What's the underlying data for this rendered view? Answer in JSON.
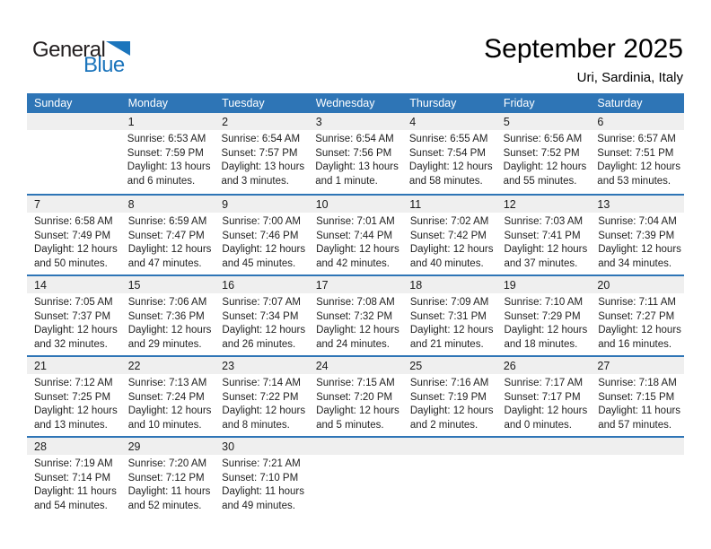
{
  "logo": {
    "general": "General",
    "blue": "Blue"
  },
  "header": {
    "title": "September 2025",
    "subtitle": "Uri, Sardinia, Italy"
  },
  "colors": {
    "header_bg": "#2E75B6",
    "header_text": "#FFFFFF",
    "separator": "#2E75B6",
    "day_band_bg": "#EFEFEF",
    "logo_blue": "#1C75BC",
    "logo_dark": "#231F20",
    "body_text": "#1F1F1F"
  },
  "weekdays": [
    "Sunday",
    "Monday",
    "Tuesday",
    "Wednesday",
    "Thursday",
    "Friday",
    "Saturday"
  ],
  "weeks": [
    [
      null,
      {
        "day": "1",
        "lines": [
          "Sunrise: 6:53 AM",
          "Sunset: 7:59 PM",
          "Daylight: 13 hours",
          "and 6 minutes."
        ]
      },
      {
        "day": "2",
        "lines": [
          "Sunrise: 6:54 AM",
          "Sunset: 7:57 PM",
          "Daylight: 13 hours",
          "and 3 minutes."
        ]
      },
      {
        "day": "3",
        "lines": [
          "Sunrise: 6:54 AM",
          "Sunset: 7:56 PM",
          "Daylight: 13 hours",
          "and 1 minute."
        ]
      },
      {
        "day": "4",
        "lines": [
          "Sunrise: 6:55 AM",
          "Sunset: 7:54 PM",
          "Daylight: 12 hours",
          "and 58 minutes."
        ]
      },
      {
        "day": "5",
        "lines": [
          "Sunrise: 6:56 AM",
          "Sunset: 7:52 PM",
          "Daylight: 12 hours",
          "and 55 minutes."
        ]
      },
      {
        "day": "6",
        "lines": [
          "Sunrise: 6:57 AM",
          "Sunset: 7:51 PM",
          "Daylight: 12 hours",
          "and 53 minutes."
        ]
      }
    ],
    [
      {
        "day": "7",
        "lines": [
          "Sunrise: 6:58 AM",
          "Sunset: 7:49 PM",
          "Daylight: 12 hours",
          "and 50 minutes."
        ]
      },
      {
        "day": "8",
        "lines": [
          "Sunrise: 6:59 AM",
          "Sunset: 7:47 PM",
          "Daylight: 12 hours",
          "and 47 minutes."
        ]
      },
      {
        "day": "9",
        "lines": [
          "Sunrise: 7:00 AM",
          "Sunset: 7:46 PM",
          "Daylight: 12 hours",
          "and 45 minutes."
        ]
      },
      {
        "day": "10",
        "lines": [
          "Sunrise: 7:01 AM",
          "Sunset: 7:44 PM",
          "Daylight: 12 hours",
          "and 42 minutes."
        ]
      },
      {
        "day": "11",
        "lines": [
          "Sunrise: 7:02 AM",
          "Sunset: 7:42 PM",
          "Daylight: 12 hours",
          "and 40 minutes."
        ]
      },
      {
        "day": "12",
        "lines": [
          "Sunrise: 7:03 AM",
          "Sunset: 7:41 PM",
          "Daylight: 12 hours",
          "and 37 minutes."
        ]
      },
      {
        "day": "13",
        "lines": [
          "Sunrise: 7:04 AM",
          "Sunset: 7:39 PM",
          "Daylight: 12 hours",
          "and 34 minutes."
        ]
      }
    ],
    [
      {
        "day": "14",
        "lines": [
          "Sunrise: 7:05 AM",
          "Sunset: 7:37 PM",
          "Daylight: 12 hours",
          "and 32 minutes."
        ]
      },
      {
        "day": "15",
        "lines": [
          "Sunrise: 7:06 AM",
          "Sunset: 7:36 PM",
          "Daylight: 12 hours",
          "and 29 minutes."
        ]
      },
      {
        "day": "16",
        "lines": [
          "Sunrise: 7:07 AM",
          "Sunset: 7:34 PM",
          "Daylight: 12 hours",
          "and 26 minutes."
        ]
      },
      {
        "day": "17",
        "lines": [
          "Sunrise: 7:08 AM",
          "Sunset: 7:32 PM",
          "Daylight: 12 hours",
          "and 24 minutes."
        ]
      },
      {
        "day": "18",
        "lines": [
          "Sunrise: 7:09 AM",
          "Sunset: 7:31 PM",
          "Daylight: 12 hours",
          "and 21 minutes."
        ]
      },
      {
        "day": "19",
        "lines": [
          "Sunrise: 7:10 AM",
          "Sunset: 7:29 PM",
          "Daylight: 12 hours",
          "and 18 minutes."
        ]
      },
      {
        "day": "20",
        "lines": [
          "Sunrise: 7:11 AM",
          "Sunset: 7:27 PM",
          "Daylight: 12 hours",
          "and 16 minutes."
        ]
      }
    ],
    [
      {
        "day": "21",
        "lines": [
          "Sunrise: 7:12 AM",
          "Sunset: 7:25 PM",
          "Daylight: 12 hours",
          "and 13 minutes."
        ]
      },
      {
        "day": "22",
        "lines": [
          "Sunrise: 7:13 AM",
          "Sunset: 7:24 PM",
          "Daylight: 12 hours",
          "and 10 minutes."
        ]
      },
      {
        "day": "23",
        "lines": [
          "Sunrise: 7:14 AM",
          "Sunset: 7:22 PM",
          "Daylight: 12 hours",
          "and 8 minutes."
        ]
      },
      {
        "day": "24",
        "lines": [
          "Sunrise: 7:15 AM",
          "Sunset: 7:20 PM",
          "Daylight: 12 hours",
          "and 5 minutes."
        ]
      },
      {
        "day": "25",
        "lines": [
          "Sunrise: 7:16 AM",
          "Sunset: 7:19 PM",
          "Daylight: 12 hours",
          "and 2 minutes."
        ]
      },
      {
        "day": "26",
        "lines": [
          "Sunrise: 7:17 AM",
          "Sunset: 7:17 PM",
          "Daylight: 12 hours",
          "and 0 minutes."
        ]
      },
      {
        "day": "27",
        "lines": [
          "Sunrise: 7:18 AM",
          "Sunset: 7:15 PM",
          "Daylight: 11 hours",
          "and 57 minutes."
        ]
      }
    ],
    [
      {
        "day": "28",
        "lines": [
          "Sunrise: 7:19 AM",
          "Sunset: 7:14 PM",
          "Daylight: 11 hours",
          "and 54 minutes."
        ]
      },
      {
        "day": "29",
        "lines": [
          "Sunrise: 7:20 AM",
          "Sunset: 7:12 PM",
          "Daylight: 11 hours",
          "and 52 minutes."
        ]
      },
      {
        "day": "30",
        "lines": [
          "Sunrise: 7:21 AM",
          "Sunset: 7:10 PM",
          "Daylight: 11 hours",
          "and 49 minutes."
        ]
      },
      null,
      null,
      null,
      null
    ]
  ]
}
